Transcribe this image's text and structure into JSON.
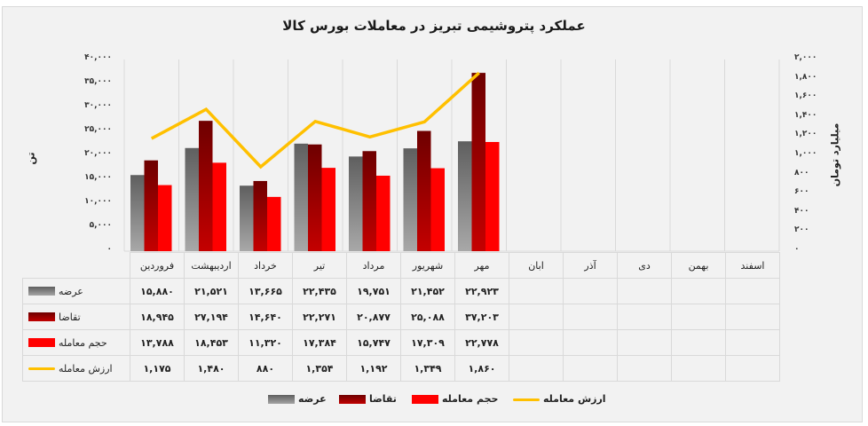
{
  "chart_data": {
    "type": "bar+line",
    "title": "عملکرد پتروشیمی تبریز در معاملات بورس کالا",
    "categories": [
      "فروردین",
      "اردیبهشت",
      "خرداد",
      "تیر",
      "مرداد",
      "شهریور",
      "مهر",
      "ابان",
      "آذر",
      "دی",
      "بهمن",
      "اسفند"
    ],
    "series": [
      {
        "name": "عرضه",
        "type": "bar",
        "axis": "left",
        "color": "#808080",
        "values": [
          15880,
          21521,
          13665,
          22435,
          19751,
          21452,
          22923,
          null,
          null,
          null,
          null,
          null
        ],
        "labels": [
          "۱۵,۸۸۰",
          "۲۱,۵۲۱",
          "۱۳,۶۶۵",
          "۲۲,۴۳۵",
          "۱۹,۷۵۱",
          "۲۱,۴۵۲",
          "۲۲,۹۲۳",
          "",
          "",
          "",
          "",
          ""
        ]
      },
      {
        "name": "تقاضا",
        "type": "bar",
        "axis": "left",
        "color": "#a00000",
        "values": [
          18945,
          27194,
          14640,
          22271,
          20877,
          25088,
          37203,
          null,
          null,
          null,
          null,
          null
        ],
        "labels": [
          "۱۸,۹۴۵",
          "۲۷,۱۹۴",
          "۱۴,۶۴۰",
          "۲۲,۲۷۱",
          "۲۰,۸۷۷",
          "۲۵,۰۸۸",
          "۳۷,۲۰۳",
          "",
          "",
          "",
          "",
          ""
        ]
      },
      {
        "name": "حجم معامله",
        "type": "bar",
        "axis": "left",
        "color": "#ff0000",
        "values": [
          13788,
          18453,
          11320,
          17384,
          15747,
          17309,
          22778,
          null,
          null,
          null,
          null,
          null
        ],
        "labels": [
          "۱۳,۷۸۸",
          "۱۸,۴۵۳",
          "۱۱,۳۲۰",
          "۱۷,۳۸۴",
          "۱۵,۷۴۷",
          "۱۷,۳۰۹",
          "۲۲,۷۷۸",
          "",
          "",
          "",
          "",
          ""
        ]
      },
      {
        "name": "ارزش معامله",
        "type": "line",
        "axis": "right",
        "color": "#ffc000",
        "values": [
          1175,
          1480,
          880,
          1354,
          1192,
          1349,
          1860,
          null,
          null,
          null,
          null,
          null
        ],
        "labels": [
          "۱,۱۷۵",
          "۱,۴۸۰",
          "۸۸۰",
          "۱,۳۵۴",
          "۱,۱۹۲",
          "۱,۳۴۹",
          "۱,۸۶۰",
          "",
          "",
          "",
          "",
          ""
        ]
      }
    ],
    "ylabel": "تن",
    "ylabel_right": "میلیارد تومان",
    "ylim": [
      0,
      40000
    ],
    "ylim_right": [
      0,
      2000
    ],
    "yticks_left": [
      "۰",
      "۵,۰۰۰",
      "۱۰,۰۰۰",
      "۱۵,۰۰۰",
      "۲۰,۰۰۰",
      "۲۵,۰۰۰",
      "۳۰,۰۰۰",
      "۳۵,۰۰۰",
      "۴۰,۰۰۰"
    ],
    "yticks_right": [
      "۰",
      "۲۰۰",
      "۴۰۰",
      "۶۰۰",
      "۸۰۰",
      "۱,۰۰۰",
      "۱,۲۰۰",
      "۱,۴۰۰",
      "۱,۶۰۰",
      "۱,۸۰۰",
      "۲,۰۰۰"
    ],
    "grid": "vertical category lines",
    "legend_position": "bottom",
    "data_table": true
  },
  "title": "عملکرد پتروشیمی تبریز در معاملات بورس کالا",
  "axis": {
    "left_label": "تن",
    "right_label": "میلیارد تومان"
  },
  "legend": [
    {
      "label": "ارزش معامله"
    },
    {
      "label": "حجم معامله"
    },
    {
      "label": "تقاضا"
    },
    {
      "label": "عرضه"
    }
  ]
}
